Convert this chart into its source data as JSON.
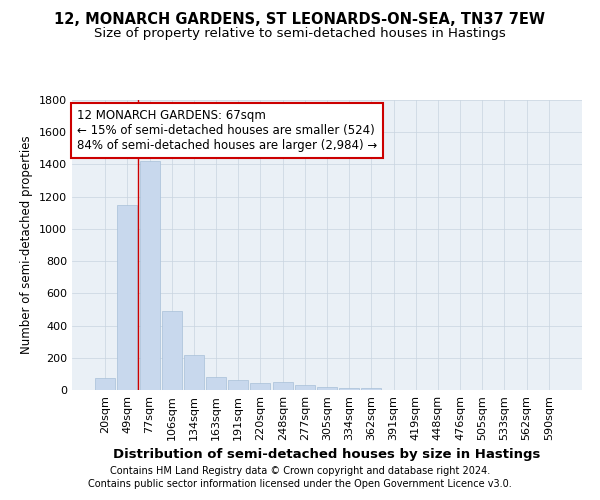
{
  "title": "12, MONARCH GARDENS, ST LEONARDS-ON-SEA, TN37 7EW",
  "subtitle": "Size of property relative to semi-detached houses in Hastings",
  "xlabel": "Distribution of semi-detached houses by size in Hastings",
  "ylabel": "Number of semi-detached properties",
  "categories": [
    "20sqm",
    "49sqm",
    "77sqm",
    "106sqm",
    "134sqm",
    "163sqm",
    "191sqm",
    "220sqm",
    "248sqm",
    "277sqm",
    "305sqm",
    "334sqm",
    "362sqm",
    "391sqm",
    "419sqm",
    "448sqm",
    "476sqm",
    "505sqm",
    "533sqm",
    "562sqm",
    "590sqm"
  ],
  "values": [
    75,
    1150,
    1420,
    490,
    215,
    80,
    65,
    45,
    50,
    28,
    20,
    15,
    15,
    0,
    0,
    0,
    0,
    0,
    0,
    0,
    0
  ],
  "bar_color": "#c8d8ed",
  "bar_edge_color": "#a8c0d8",
  "grid_color": "#c8d4e0",
  "annotation_box_color": "#cc0000",
  "property_line_color": "#cc0000",
  "property_line_x": 1.5,
  "property_label": "12 MONARCH GARDENS: 67sqm",
  "pct_smaller": "15% of semi-detached houses are smaller (524)",
  "pct_larger": "84% of semi-detached houses are larger (2,984)",
  "ylim": [
    0,
    1800
  ],
  "yticks": [
    0,
    200,
    400,
    600,
    800,
    1000,
    1200,
    1400,
    1600,
    1800
  ],
  "footnote1": "Contains HM Land Registry data © Crown copyright and database right 2024.",
  "footnote2": "Contains public sector information licensed under the Open Government Licence v3.0.",
  "title_fontsize": 10.5,
  "subtitle_fontsize": 9.5,
  "xlabel_fontsize": 9.5,
  "ylabel_fontsize": 8.5,
  "tick_fontsize": 8,
  "annotation_fontsize": 8.5,
  "footnote_fontsize": 7,
  "bg_color": "#ffffff",
  "plot_bg_color": "#eaf0f6"
}
